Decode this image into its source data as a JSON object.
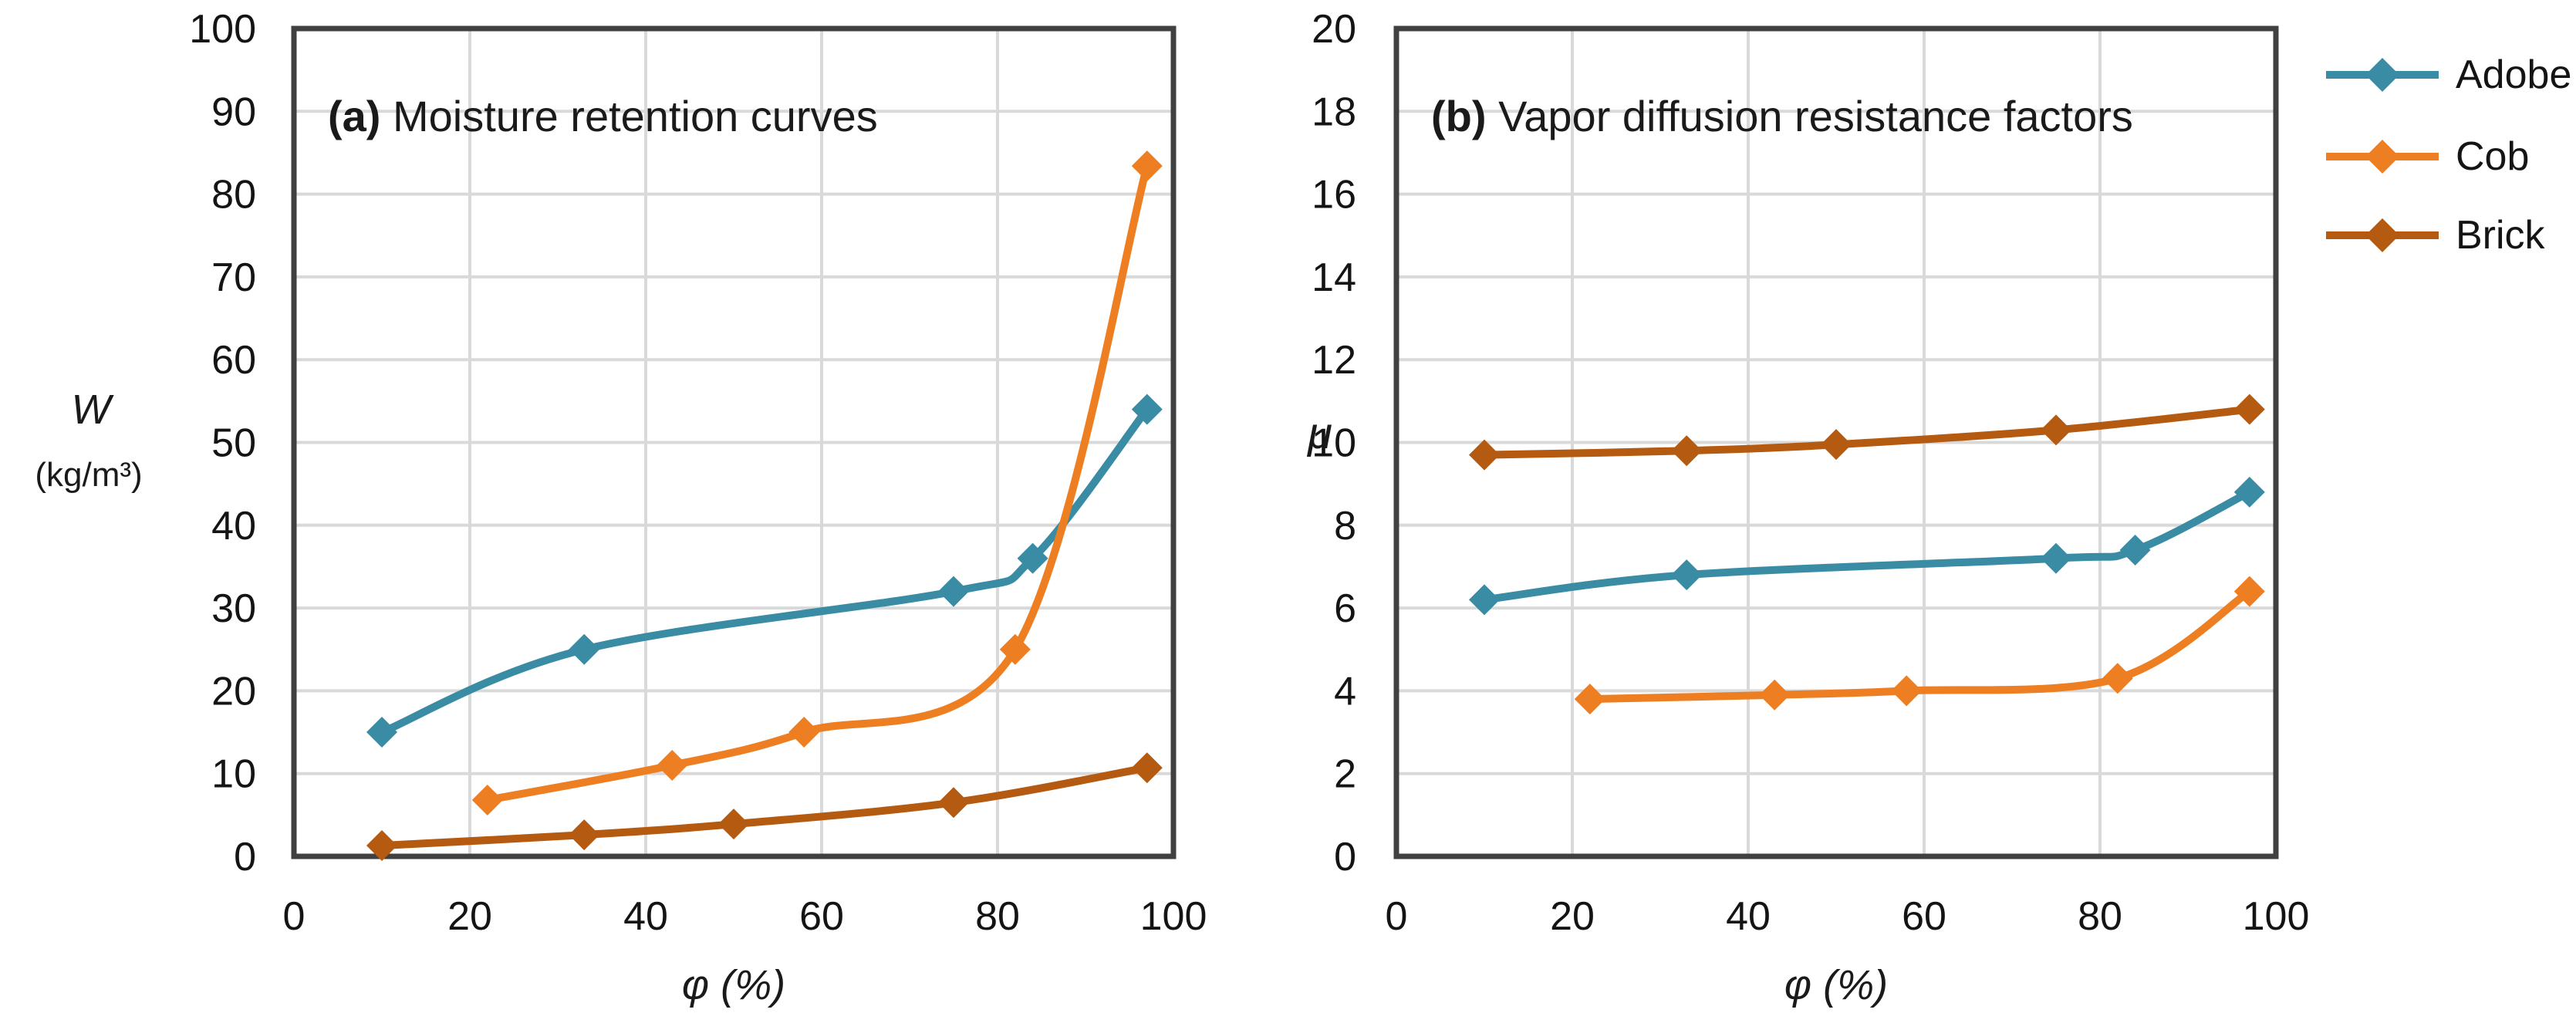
{
  "figure": {
    "background": "#ffffff",
    "text_color": "#141414",
    "axis_color": "#404040",
    "grid_color": "#d9d9d9"
  },
  "legend": {
    "items": [
      {
        "label": "Adobe",
        "color": "#398ca4"
      },
      {
        "label": "Cob",
        "color": "#ee7e22"
      },
      {
        "label": "Brick",
        "color": "#b45a11"
      }
    ]
  },
  "chart_data": [
    {
      "type": "line",
      "panel": "a",
      "title_prefix": "(a)",
      "title_rest": " Moisture retention curves",
      "xlabel": "φ (%)",
      "ylabel": "W",
      "ylabel_units": "(kg/m³)",
      "xlim": [
        0,
        100
      ],
      "ylim": [
        0,
        100
      ],
      "xticks": [
        0,
        20,
        40,
        60,
        80,
        100
      ],
      "yticks": [
        0,
        10,
        20,
        30,
        40,
        50,
        60,
        70,
        80,
        90,
        100
      ],
      "grid": true,
      "marker": "diamond",
      "series": [
        {
          "name": "Adobe",
          "color": "#398ca4",
          "x": [
            10,
            33,
            75,
            84,
            97
          ],
          "y": [
            15,
            25,
            32,
            36,
            54
          ]
        },
        {
          "name": "Cob",
          "color": "#ee7e22",
          "x": [
            22,
            43,
            58,
            82,
            97
          ],
          "y": [
            6.8,
            11,
            15,
            25,
            83.4
          ]
        },
        {
          "name": "Brick",
          "color": "#b45a11",
          "x": [
            10,
            33,
            50,
            75,
            97
          ],
          "y": [
            1.3,
            2.6,
            3.9,
            6.5,
            10.7
          ]
        }
      ]
    },
    {
      "type": "line",
      "panel": "b",
      "title_prefix": "(b)",
      "title_rest": " Vapor diffusion resistance factors",
      "xlabel": "φ (%)",
      "ylabel": "μ",
      "ylabel_units": "",
      "xlim": [
        0,
        100
      ],
      "ylim": [
        0,
        20
      ],
      "xticks": [
        0,
        20,
        40,
        60,
        80,
        100
      ],
      "yticks": [
        0,
        2,
        4,
        6,
        8,
        10,
        12,
        14,
        16,
        18,
        20
      ],
      "grid": true,
      "marker": "diamond",
      "series": [
        {
          "name": "Adobe",
          "color": "#398ca4",
          "x": [
            10,
            33,
            75,
            84,
            97
          ],
          "y": [
            6.2,
            6.8,
            7.2,
            7.4,
            8.8
          ]
        },
        {
          "name": "Cob",
          "color": "#ee7e22",
          "x": [
            22,
            43,
            58,
            82,
            97
          ],
          "y": [
            3.8,
            3.9,
            4.0,
            4.3,
            6.4
          ]
        },
        {
          "name": "Brick",
          "color": "#b45a11",
          "x": [
            10,
            33,
            50,
            75,
            97
          ],
          "y": [
            9.7,
            9.8,
            9.95,
            10.3,
            10.8
          ]
        }
      ]
    }
  ]
}
